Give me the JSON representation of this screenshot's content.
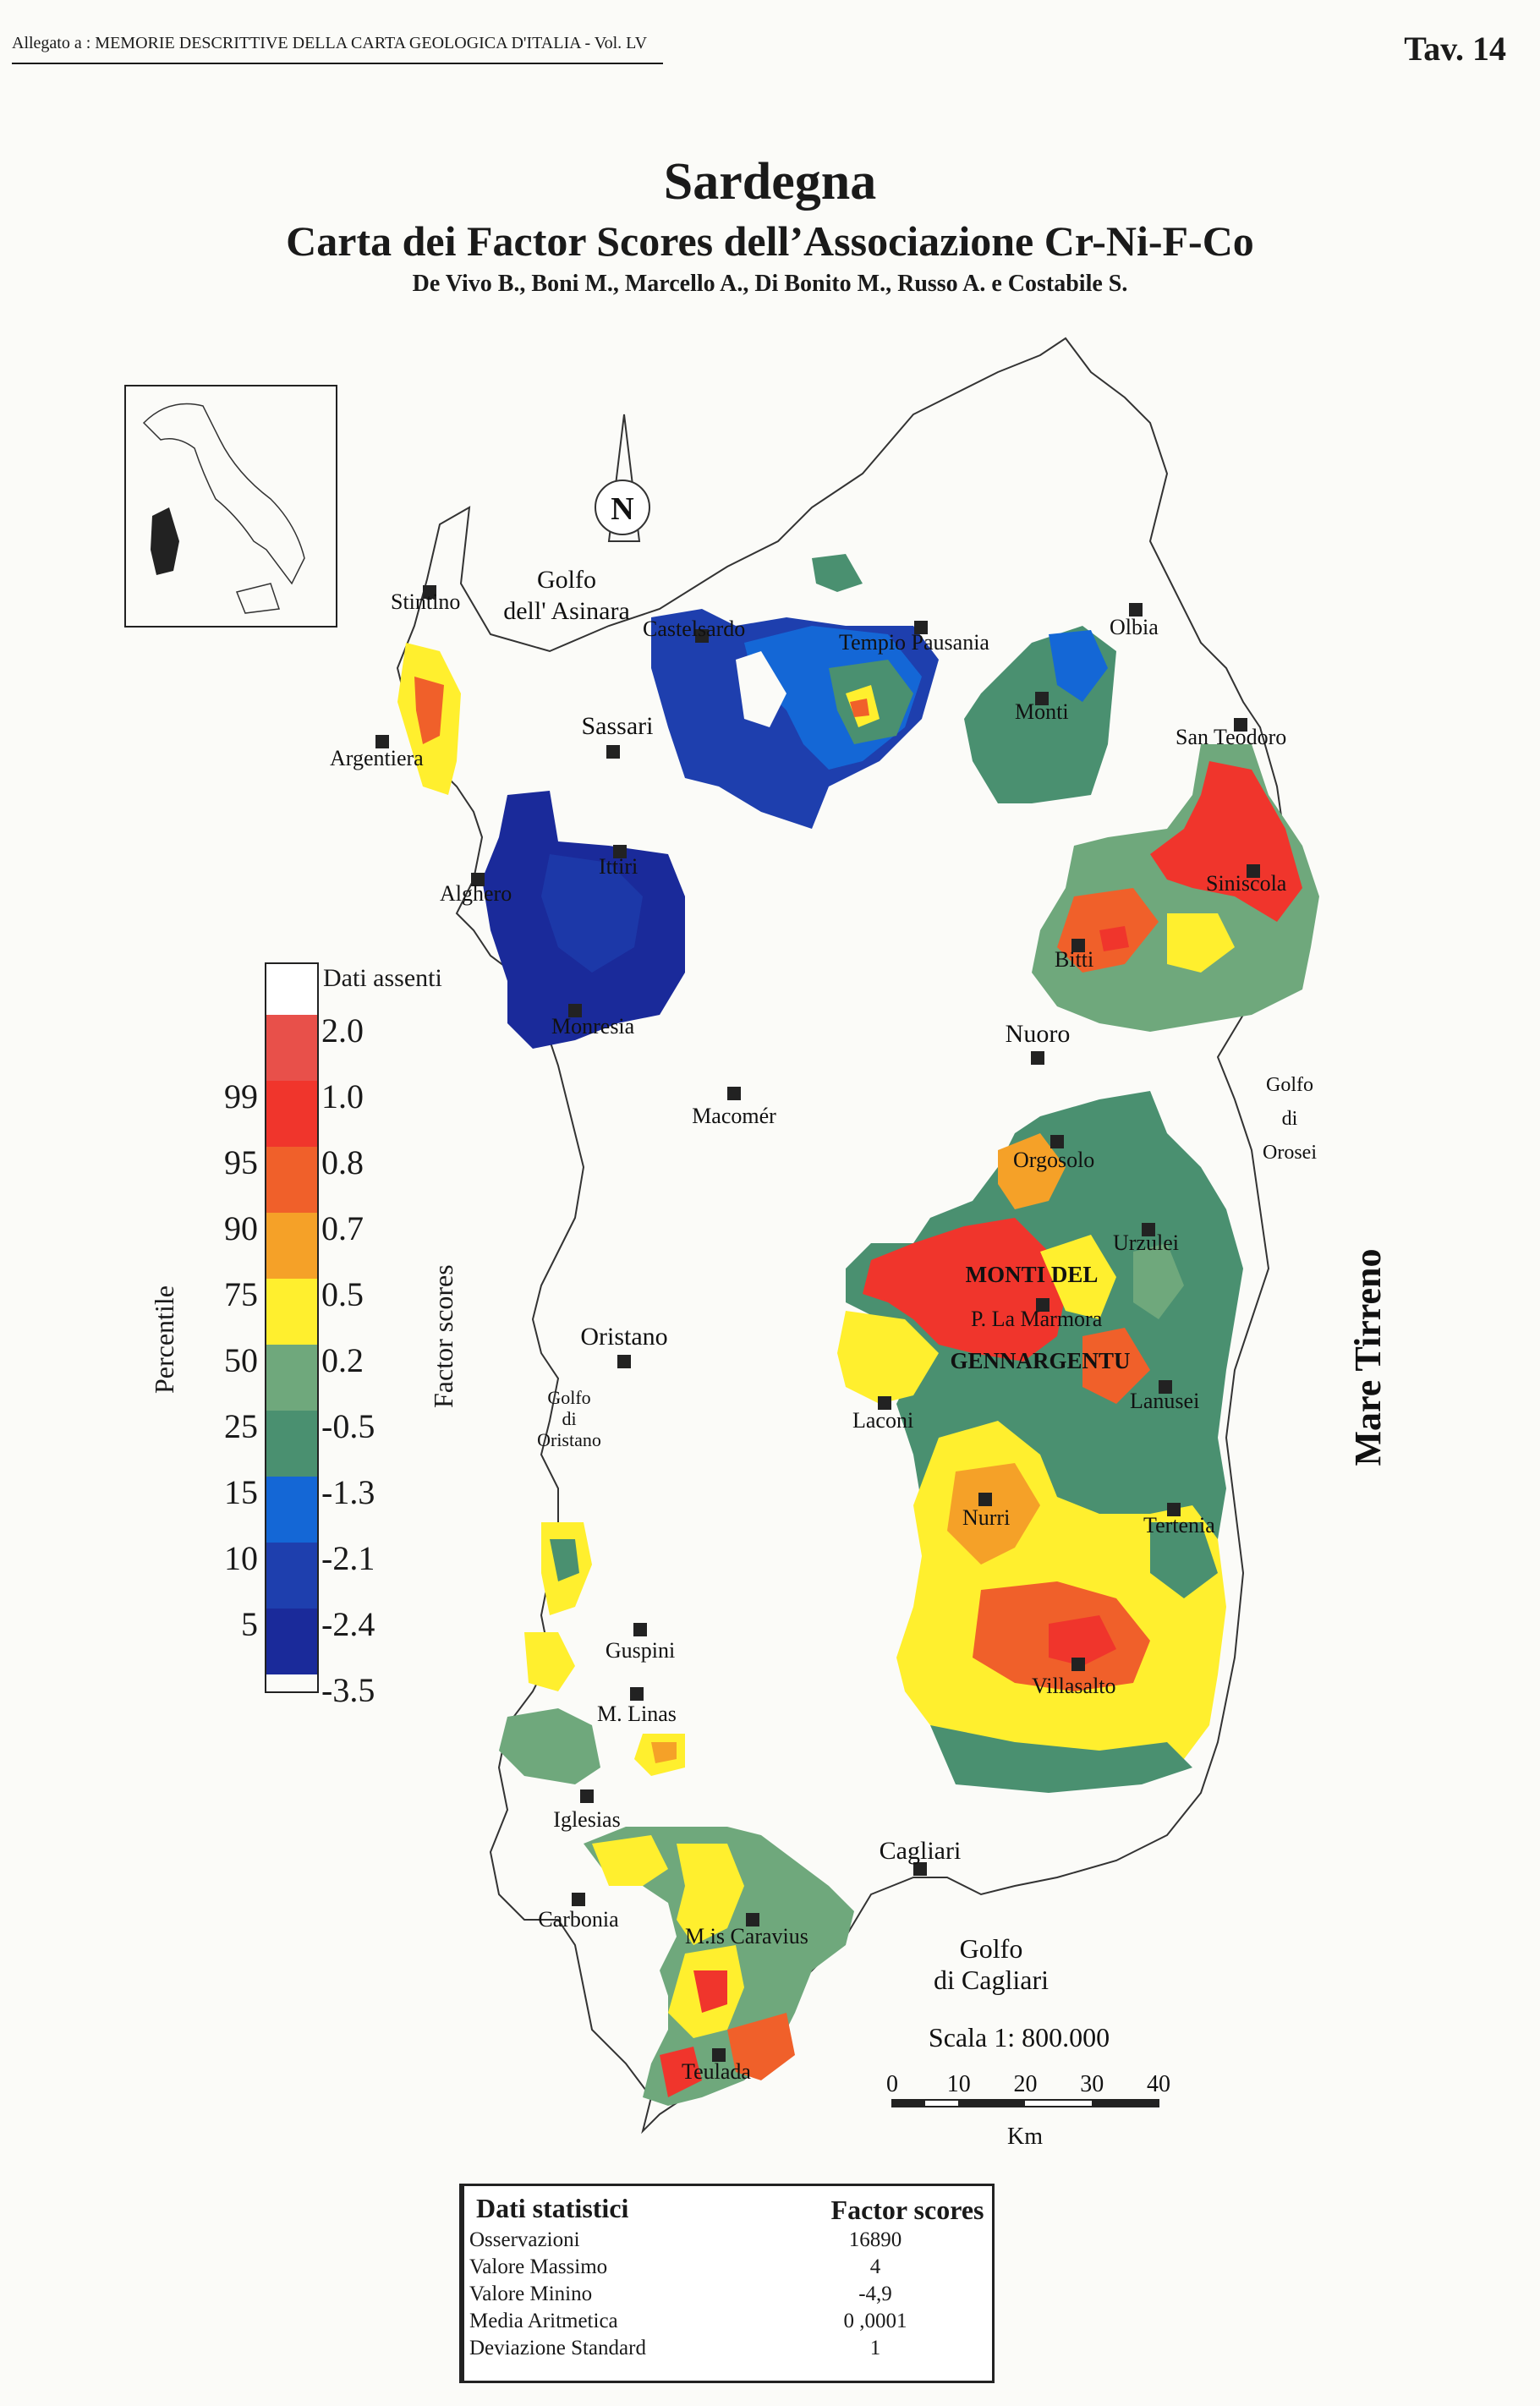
{
  "header": {
    "left": "Allegato a : MEMORIE DESCRITTIVE DELLA CARTA GEOLOGICA D'ITALIA - Vol. LV",
    "right": "Tav. 14"
  },
  "title": {
    "main": "Sardegna",
    "subtitle": "Carta dei Factor Scores dell’Associazione Cr-Ni-F-Co",
    "authors": "De Vivo B., Boni M., Marcello A., Di Bonito M., Russo A. e Costabile S."
  },
  "north_label": "N",
  "place_labels": [
    {
      "name": "Stintino"
    },
    {
      "name": "Argentiera"
    },
    {
      "name": "Alghero"
    },
    {
      "name": "Ittiri"
    },
    {
      "name": "Monresia"
    },
    {
      "name": "Sassari"
    },
    {
      "name": "Castelsardo"
    },
    {
      "name": "Tempio Pausania"
    },
    {
      "name": "Olbia"
    },
    {
      "name": "Monti"
    },
    {
      "name": "San Teodoro"
    },
    {
      "name": "Siniscola"
    },
    {
      "name": "Bitti"
    },
    {
      "name": "Nuoro"
    },
    {
      "name": "Macomér"
    },
    {
      "name": "Orgosolo"
    },
    {
      "name": "Urzulei"
    },
    {
      "name": "P. La Marmora"
    },
    {
      "name": "Lanusei"
    },
    {
      "name": "Laconi"
    },
    {
      "name": "Oristano"
    },
    {
      "name": "Nurri"
    },
    {
      "name": "Tertenia"
    },
    {
      "name": "Guspini"
    },
    {
      "name": "M. Linas"
    },
    {
      "name": "Villasalto"
    },
    {
      "name": "Iglesias"
    },
    {
      "name": "Cagliari"
    },
    {
      "name": "Carbonia"
    },
    {
      "name": "M.is Caravius"
    },
    {
      "name": "Teulada"
    }
  ],
  "sea_labels": {
    "golfo_asinara_1": "Golfo",
    "golfo_asinara_2": "dell' Asinara",
    "golfo_orosei_1": "Golfo",
    "golfo_orosei_2": "di",
    "golfo_orosei_3": "Orosei",
    "golfo_oristano_1": "Golfo",
    "golfo_oristano_2": "di",
    "golfo_oristano_3": "Oristano",
    "golfo_cagliari_1": "Golfo",
    "golfo_cagliari_2": "di  Cagliari",
    "mare": "Mare Tirreno",
    "monti_1": "MONTI  DEL",
    "monti_2": "GENNARGENTU"
  },
  "legend": {
    "missing_label": "Dati assenti",
    "factor_axis_label": "Factor scores",
    "percentile_axis_label": "Percentile",
    "factor_ticks": [
      "2.0",
      "1.0",
      "0.8",
      "0.7",
      "0.5",
      "0.2",
      "-0.5",
      "-1.3",
      "-2.1",
      "-2.4",
      "-3.5"
    ],
    "percentile_ticks": [
      "99",
      "95",
      "90",
      "75",
      "50",
      "25",
      "15",
      "10",
      "5"
    ],
    "classes": [
      {
        "color": "#ffffff",
        "label": "Dati assenti"
      },
      {
        "color": "#e8504a"
      },
      {
        "color": "#f0352c"
      },
      {
        "color": "#f0602a"
      },
      {
        "color": "#f5a128"
      },
      {
        "color": "#ffef2e"
      },
      {
        "color": "#6fa87c"
      },
      {
        "color": "#4a9070"
      },
      {
        "color": "#1467d6"
      },
      {
        "color": "#1e3fae"
      },
      {
        "color": "#1a2a9a"
      }
    ]
  },
  "scale": {
    "label": "Scala 1: 800.000",
    "ticks": [
      "0",
      "10",
      "20",
      "30",
      "40"
    ],
    "unit": "Km"
  },
  "stats": {
    "title": "Dati  statistici",
    "column": "Factor scores",
    "rows": [
      {
        "key": "Osservazioni",
        "value": "16890"
      },
      {
        "key": "Valore Massimo",
        "value": "4"
      },
      {
        "key": "Valore Minino",
        "value": "-4,9"
      },
      {
        "key": "Media Aritmetica",
        "value": "0 ,0001"
      },
      {
        "key": "Deviazione Standard",
        "value": "1"
      }
    ]
  }
}
